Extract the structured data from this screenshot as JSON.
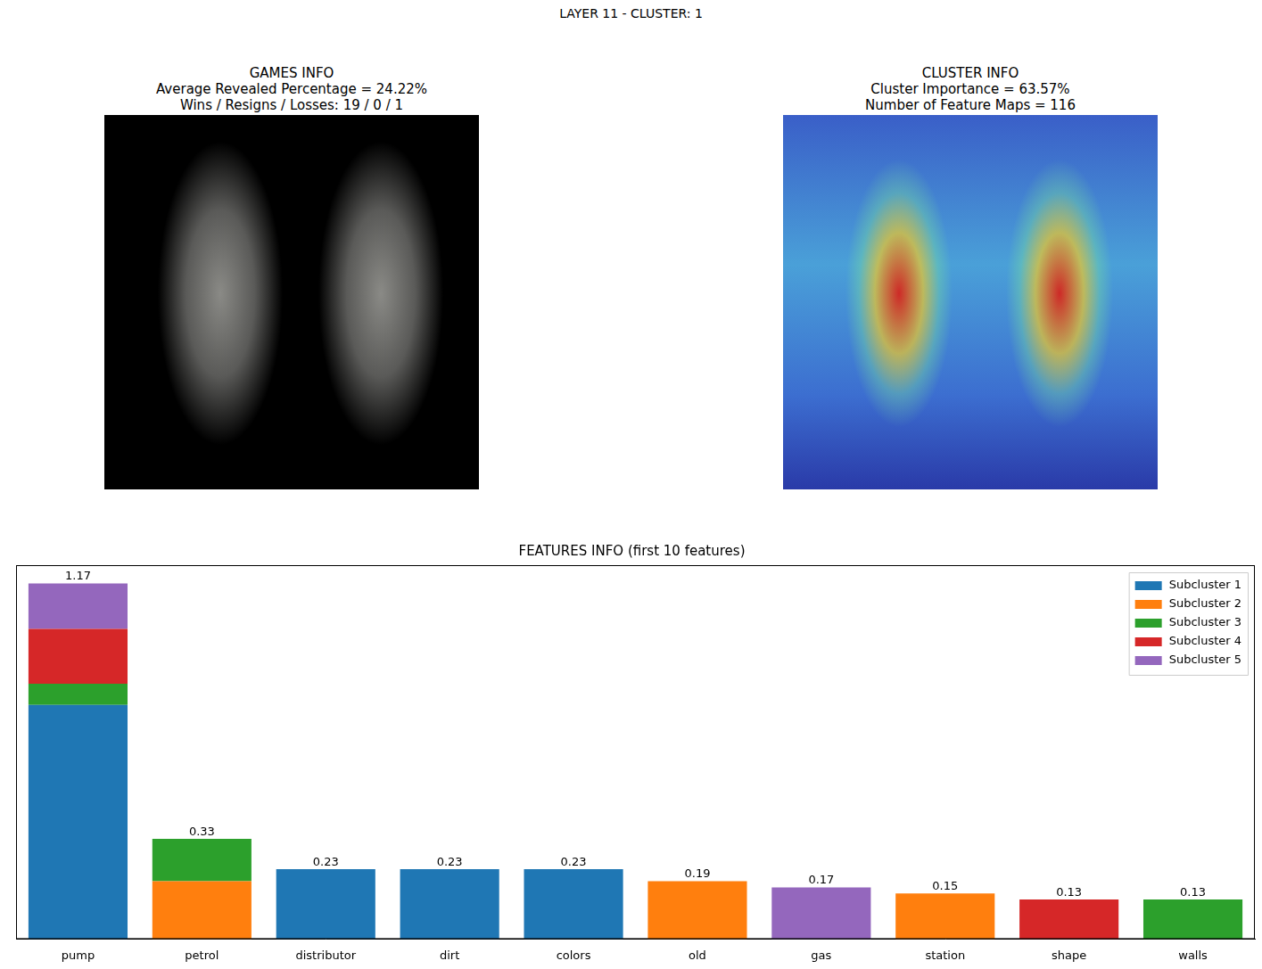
{
  "suptitle": "LAYER 11 - CLUSTER: 1",
  "panels": [
    {
      "title": [
        "GAMES INFO",
        "Average Revealed Percentage = 24.22%",
        "Wins / Resigns / Losses: 19 / 0 / 1"
      ]
    },
    {
      "title": [
        "CLUSTER INFO",
        "Cluster Importance = 63.57%",
        "Number of Feature Maps = 116"
      ]
    }
  ],
  "chart_data": {
    "type": "bar",
    "title": "FEATURES INFO (first 10 features)",
    "categories": [
      "pump",
      "petrol",
      "distributor",
      "dirt",
      "colors",
      "old",
      "gas",
      "station",
      "shape",
      "walls"
    ],
    "series": [
      {
        "name": "Subcluster 1",
        "color": "#1f77b4",
        "values": [
          0.77,
          null,
          0.23,
          0.23,
          0.23,
          null,
          null,
          null,
          null,
          null
        ]
      },
      {
        "name": "Subcluster 2",
        "color": "#ff7f0e",
        "values": [
          null,
          0.19,
          null,
          null,
          null,
          0.19,
          null,
          0.15,
          null,
          null
        ]
      },
      {
        "name": "Subcluster 3",
        "color": "#2ca02c",
        "values": [
          0.07,
          0.14,
          null,
          null,
          null,
          null,
          null,
          null,
          null,
          0.13
        ]
      },
      {
        "name": "Subcluster 4",
        "color": "#d62728",
        "values": [
          0.18,
          null,
          null,
          null,
          null,
          null,
          null,
          null,
          0.13,
          null
        ]
      },
      {
        "name": "Subcluster 5",
        "color": "#9467bd",
        "values": [
          0.15,
          null,
          null,
          null,
          null,
          null,
          0.17,
          null,
          null,
          null
        ]
      }
    ],
    "totals": [
      1.17,
      0.33,
      0.23,
      0.23,
      0.23,
      0.19,
      0.17,
      0.15,
      0.13,
      0.13
    ],
    "ylim": [
      0,
      1.23
    ],
    "stacked": true,
    "grid": false,
    "legend": "upper right",
    "tick_labels": "x"
  }
}
